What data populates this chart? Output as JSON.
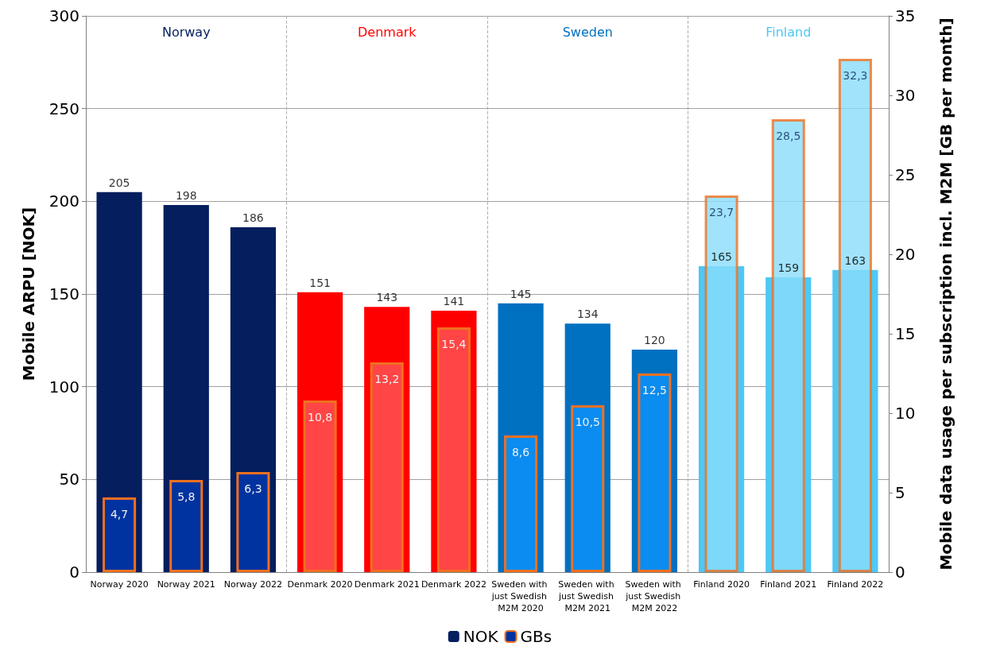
{
  "chart_data": {
    "type": "bar",
    "categories": [
      "Norway 2020",
      "Norway 2021",
      "Norway 2022",
      "Denmark 2020",
      "Denmark 2021",
      "Denmark 2022",
      "Sweden with just Swedish M2M 2020",
      "Sweden with just Swedish M2M 2021",
      "Sweden with just Swedish M2M 2022",
      "Finland 2020",
      "Finland 2021",
      "Finland 2022"
    ],
    "series": [
      {
        "name": "NOK",
        "color": "#041e5e",
        "colors": [
          "#041e5e",
          "#041e5e",
          "#041e5e",
          "#ff0000",
          "#ff0000",
          "#ff0000",
          "#0070c0",
          "#0070c0",
          "#0070c0",
          "#4dc8f5",
          "#4dc8f5",
          "#4dc8f5"
        ],
        "values": [
          205,
          198,
          186,
          151,
          143,
          141,
          145,
          134,
          120,
          165,
          159,
          163
        ],
        "value_labels": [
          "205",
          "198",
          "186",
          "151",
          "143",
          "141",
          "145",
          "134",
          "120",
          "165",
          "159",
          "163"
        ]
      },
      {
        "name": "GBs",
        "axis": "y2",
        "color": "#0033a0",
        "colors": [
          "#0033a0",
          "#0033a0",
          "#0033a0",
          "#ff4545",
          "#ff4545",
          "#ff4545",
          "#0a8cf0",
          "#0a8cf0",
          "#0a8cf0",
          "#8adcfa",
          "#8adcfa",
          "#8adcfa"
        ],
        "values": [
          4.7,
          5.8,
          6.3,
          10.8,
          13.2,
          15.4,
          8.6,
          10.5,
          12.5,
          23.7,
          28.5,
          32.3
        ],
        "value_labels": [
          "4,7",
          "5,8",
          "6,3",
          "10,8",
          "13,2",
          "15,4",
          "8,6",
          "10,5",
          "12,5",
          "23,7",
          "28,5",
          "32,3"
        ]
      }
    ],
    "ylabel": "Mobile ARPU [NOK]",
    "y2label": "Mobile data usage per subscription incl. M2M [GB per month]",
    "ylim": [
      0,
      300
    ],
    "yticks": [
      0,
      50,
      100,
      150,
      200,
      250,
      300
    ],
    "y2lim": [
      0,
      35
    ],
    "y2ticks": [
      0,
      5,
      10,
      15,
      20,
      25,
      30,
      35
    ],
    "annotations": [
      "Norway",
      "Denmark",
      "Sweden",
      "Finland"
    ],
    "grid": "y",
    "legend": "bottom"
  }
}
